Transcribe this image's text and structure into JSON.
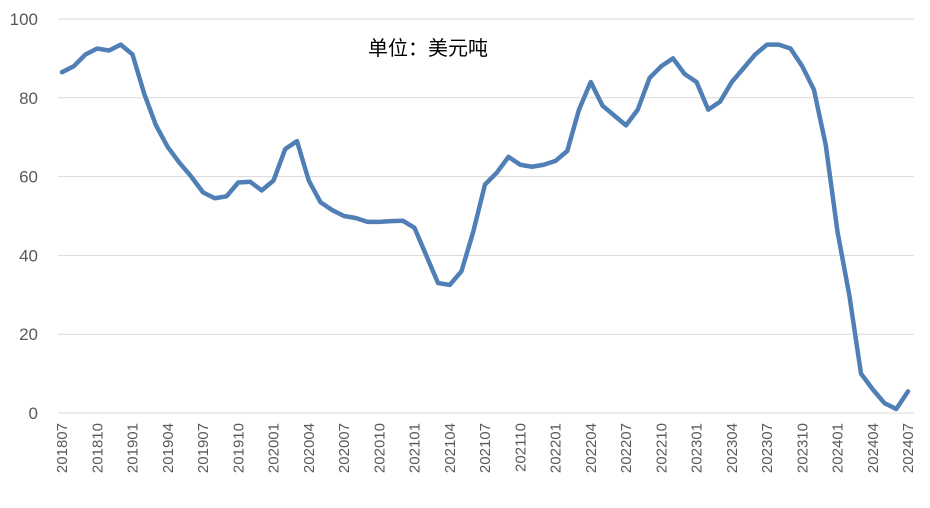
{
  "chart_data": {
    "type": "line",
    "annotation": "单位：美元吨",
    "ylim": [
      0,
      100
    ],
    "yticks": [
      0,
      20,
      40,
      60,
      80,
      100
    ],
    "grid": true,
    "legend": "none",
    "line_color": "#4f7fb5",
    "x_tick_labels": [
      "201807",
      "201810",
      "201901",
      "201904",
      "201907",
      "201910",
      "202001",
      "202004",
      "202007",
      "202010",
      "202101",
      "202104",
      "202107",
      "202110",
      "202201",
      "202204",
      "202207",
      "202210",
      "202301",
      "202304",
      "202307",
      "202310",
      "202401",
      "202404",
      "202407"
    ],
    "x": [
      "201807",
      "201808",
      "201809",
      "201810",
      "201811",
      "201812",
      "201901",
      "201902",
      "201903",
      "201904",
      "201905",
      "201906",
      "201907",
      "201908",
      "201909",
      "201910",
      "201911",
      "201912",
      "202001",
      "202002",
      "202003",
      "202004",
      "202005",
      "202006",
      "202007",
      "202008",
      "202009",
      "202010",
      "202011",
      "202012",
      "202101",
      "202102",
      "202103",
      "202104",
      "202105",
      "202106",
      "202107",
      "202108",
      "202109",
      "202110",
      "202111",
      "202112",
      "202201",
      "202202",
      "202203",
      "202204",
      "202205",
      "202206",
      "202207",
      "202208",
      "202209",
      "202210",
      "202211",
      "202212",
      "202301",
      "202302",
      "202303",
      "202304",
      "202305",
      "202306",
      "202307",
      "202308",
      "202309",
      "202310",
      "202311",
      "202312",
      "202401",
      "202402",
      "202403",
      "202404",
      "202405",
      "202406",
      "202407"
    ],
    "series": [
      {
        "values": [
          86.5,
          88,
          91,
          92.5,
          92,
          93.5,
          91,
          81,
          73,
          67.5,
          63.5,
          60,
          56,
          54.5,
          55,
          58.5,
          58.7,
          56.5,
          59,
          67,
          69,
          59,
          53.5,
          51.5,
          50,
          49.5,
          48.5,
          48.5,
          48.7,
          48.8,
          47,
          40,
          33,
          32.5,
          36,
          46,
          58,
          61,
          65,
          63,
          62.5,
          63,
          64,
          66.5,
          77,
          84,
          78,
          75.5,
          73,
          77,
          85,
          88,
          90,
          86,
          84,
          77,
          79,
          84,
          87.5,
          91,
          93.5,
          93.5,
          92.5,
          88,
          82,
          68,
          46,
          30,
          10,
          6,
          2.5,
          1,
          5.5
        ]
      }
    ]
  }
}
